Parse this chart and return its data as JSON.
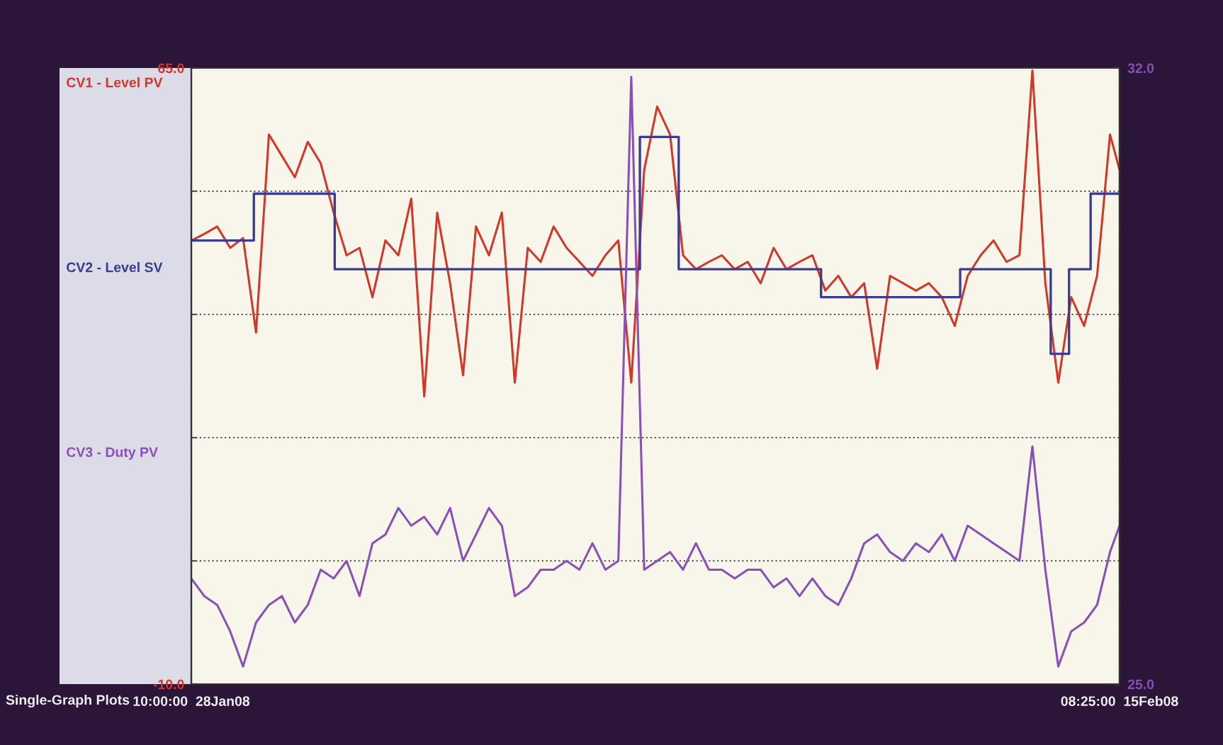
{
  "chart_data": {
    "type": "line",
    "x": [
      "2008-01-28T10:00",
      "2008-01-28T16:00",
      "2008-01-28T22:00",
      "2008-01-29T04:00",
      "2008-01-29T10:00",
      "2008-01-29T16:00",
      "2008-01-29T22:00",
      "2008-01-30T04:00",
      "2008-01-30T10:00",
      "2008-01-30T16:00",
      "2008-01-30T22:00",
      "2008-01-31T04:00",
      "2008-01-31T10:00",
      "2008-01-31T16:00",
      "2008-01-31T22:00",
      "2008-02-01T04:00",
      "2008-02-01T10:00",
      "2008-02-01T16:00",
      "2008-02-01T22:00",
      "2008-02-02T04:00",
      "2008-02-02T10:00",
      "2008-02-02T16:00",
      "2008-02-02T22:00",
      "2008-02-03T04:00",
      "2008-02-03T10:00",
      "2008-02-03T16:00",
      "2008-02-03T22:00",
      "2008-02-04T04:00",
      "2008-02-04T10:00",
      "2008-02-04T16:00",
      "2008-02-04T22:00",
      "2008-02-05T04:00",
      "2008-02-05T10:00",
      "2008-02-05T16:00",
      "2008-02-05T22:00",
      "2008-02-06T04:00",
      "2008-02-06T10:00",
      "2008-02-06T16:00",
      "2008-02-06T22:00",
      "2008-02-07T04:00",
      "2008-02-07T10:00",
      "2008-02-07T16:00",
      "2008-02-07T22:00",
      "2008-02-08T04:00",
      "2008-02-08T10:00",
      "2008-02-08T16:00",
      "2008-02-08T22:00",
      "2008-02-09T04:00",
      "2008-02-09T10:00",
      "2008-02-09T16:00",
      "2008-02-09T22:00",
      "2008-02-10T04:00",
      "2008-02-10T10:00",
      "2008-02-10T16:00",
      "2008-02-10T22:00",
      "2008-02-11T04:00",
      "2008-02-11T10:00",
      "2008-02-11T16:00",
      "2008-02-11T22:00",
      "2008-02-12T04:00",
      "2008-02-12T10:00",
      "2008-02-12T16:00",
      "2008-02-12T22:00",
      "2008-02-13T04:00",
      "2008-02-13T10:00",
      "2008-02-13T16:00",
      "2008-02-13T22:00",
      "2008-02-14T04:00",
      "2008-02-14T10:00",
      "2008-02-14T16:00",
      "2008-02-14T22:00",
      "2008-02-15T04:00",
      "2008-02-15T08:25"
    ],
    "series": [
      {
        "name": "CV1 - Level PV",
        "color": "#d0392a",
        "values": [
          44.0,
          44.8,
          45.7,
          43.1,
          44.3,
          32.8,
          56.9,
          54.3,
          51.7,
          56.0,
          53.4,
          47.4,
          42.2,
          43.1,
          37.1,
          44.0,
          42.2,
          49.1,
          25.0,
          47.4,
          38.8,
          27.6,
          45.7,
          42.2,
          47.4,
          26.7,
          43.1,
          41.4,
          45.7,
          43.1,
          41.4,
          39.7,
          42.2,
          44.0,
          26.7,
          52.6,
          60.3,
          56.9,
          42.2,
          40.5,
          41.4,
          42.2,
          40.5,
          41.4,
          38.8,
          43.1,
          40.5,
          41.4,
          42.2,
          37.9,
          39.7,
          37.1,
          38.8,
          28.4,
          39.7,
          38.8,
          37.9,
          38.8,
          37.1,
          33.6,
          39.7,
          42.2,
          44.0,
          41.4,
          42.2,
          64.7,
          38.8,
          26.7,
          37.1,
          33.6,
          39.7,
          56.9,
          52.6
        ]
      },
      {
        "name": "CV2 - Level SV",
        "color": "#3b3b8f",
        "type": "step",
        "x": [
          "2008-01-28T10:00",
          "2008-01-29T15:00",
          "2008-01-31T04:30",
          "2008-02-06T02:00",
          "2008-02-06T20:00",
          "2008-02-09T14:00",
          "2008-02-12T06:30",
          "2008-02-14T00:30",
          "2008-02-14T09:00",
          "2008-02-14T19:00",
          "2008-02-15T08:25"
        ],
        "values": [
          44.0,
          49.7,
          40.5,
          56.6,
          40.5,
          37.1,
          40.5,
          30.2,
          40.5,
          49.7,
          49.7
        ]
      },
      {
        "name": "CV3 - Duty PV",
        "color": "#8a4fb8",
        "axis": "y2",
        "values": [
          26.2,
          26.0,
          25.9,
          25.6,
          25.2,
          25.7,
          25.9,
          26.0,
          25.7,
          25.9,
          26.3,
          26.2,
          26.4,
          26.0,
          26.6,
          26.7,
          27.0,
          26.8,
          26.9,
          26.7,
          27.0,
          26.4,
          26.7,
          27.0,
          26.8,
          26.0,
          26.1,
          26.3,
          26.3,
          26.4,
          26.3,
          26.6,
          26.3,
          26.4,
          31.9,
          26.3,
          26.4,
          26.5,
          26.3,
          26.6,
          26.3,
          26.3,
          26.2,
          26.3,
          26.3,
          26.1,
          26.2,
          26.0,
          26.2,
          26.0,
          25.9,
          26.2,
          26.6,
          26.7,
          26.5,
          26.4,
          26.6,
          26.5,
          26.7,
          26.4,
          26.8,
          26.7,
          26.6,
          26.5,
          26.4,
          27.7,
          26.3,
          25.2,
          25.6,
          25.7,
          25.9,
          26.5,
          26.8
        ]
      }
    ],
    "ylim": [
      -10,
      65
    ],
    "yticks": [
      {
        "value": -10,
        "label": "-10.0"
      },
      {
        "value": 5,
        "label": null
      },
      {
        "value": 20,
        "label": null
      },
      {
        "value": 35,
        "label": null
      },
      {
        "value": 50,
        "label": null
      },
      {
        "value": 65,
        "label": "65.0"
      }
    ],
    "y2lim": [
      25,
      32
    ],
    "y2ticks": [
      {
        "value": 25,
        "label": "25.0"
      },
      {
        "value": 32,
        "label": "32.0"
      }
    ],
    "xlim": [
      "2008-01-28T10:00",
      "2008-02-15T08:25"
    ],
    "xticks": [
      {
        "value": "2008-01-28T10:00",
        "label": "10:00:00  28Jan08"
      },
      {
        "value": "2008-02-15T08:25",
        "label": "08:25:00  15Feb08"
      }
    ],
    "grid": true,
    "legend": "left",
    "line_style": "solid",
    "annotations": [
      "Single-Graph Plots"
    ]
  }
}
